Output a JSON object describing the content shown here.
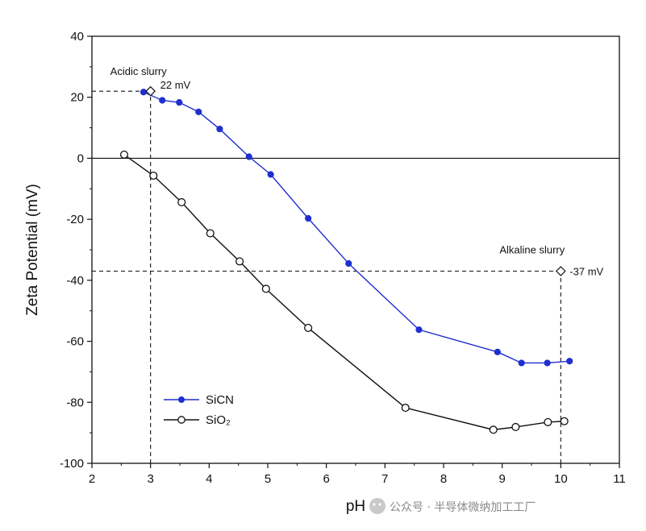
{
  "chart_data": {
    "type": "line",
    "title": "",
    "xlabel": "pH",
    "ylabel": "Zeta Potential (mV)",
    "xlim": [
      2,
      11
    ],
    "ylim": [
      -100,
      40
    ],
    "x_ticks": [
      2,
      3,
      4,
      5,
      6,
      7,
      8,
      9,
      10,
      11
    ],
    "y_ticks": [
      40,
      20,
      0,
      -20,
      -40,
      -60,
      -80,
      -100
    ],
    "legend_position": "bottom-left",
    "series": [
      {
        "name": "SiCN",
        "color": "#1f2fd0",
        "marker": "filled-circle",
        "x": [
          2.88,
          3.2,
          3.49,
          3.82,
          4.18,
          4.68,
          5.05,
          5.69,
          6.38,
          7.58,
          8.92,
          9.33,
          9.77,
          10.15
        ],
        "y": [
          21.7,
          19,
          18.3,
          15.2,
          9.6,
          0.5,
          -5.3,
          -19.7,
          -34.5,
          -56.2,
          -63.5,
          -67.1,
          -67.1,
          -66.5
        ]
      },
      {
        "name": "SiO₂",
        "color": "#111111",
        "marker": "open-circle",
        "x": [
          2.55,
          3.05,
          3.53,
          4.02,
          4.52,
          4.97,
          5.69,
          7.35,
          8.85,
          9.23,
          9.78,
          10.06
        ],
        "y": [
          1.2,
          -5.7,
          -14.4,
          -24.6,
          -33.8,
          -42.8,
          -55.6,
          -81.8,
          -89,
          -88.1,
          -86.5,
          -86.2
        ]
      }
    ],
    "reference_lines": [
      {
        "type": "hline",
        "y": 0,
        "style": "solid"
      },
      {
        "type": "hline",
        "y": 22,
        "x_range": [
          2,
          3
        ],
        "style": "dashed"
      },
      {
        "type": "vline",
        "x": 3,
        "y_range": [
          -100,
          22
        ],
        "style": "dashed"
      },
      {
        "type": "hline",
        "y": -37,
        "x_range": [
          2,
          10
        ],
        "style": "dashed"
      },
      {
        "type": "vline",
        "x": 10,
        "y_range": [
          -100,
          -37
        ],
        "style": "dashed"
      }
    ],
    "annotations": [
      {
        "text": "Acidic slurry",
        "x": 3,
        "y": 22
      },
      {
        "text": "22 mV",
        "x": 3,
        "y": 22,
        "marker": "diamond"
      },
      {
        "text": "Alkaline slurry",
        "x": 10,
        "y": -37
      },
      {
        "text": "-37 mV",
        "x": 10,
        "y": -37,
        "marker": "diamond"
      }
    ]
  },
  "watermark": "公众号 · 半导体微纳加工工厂"
}
